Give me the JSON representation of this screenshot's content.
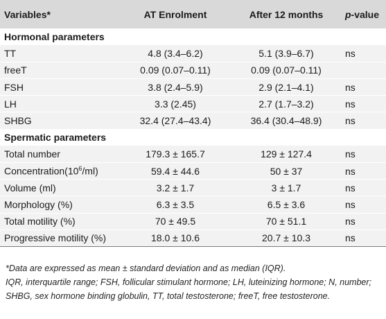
{
  "header": {
    "variables": "Variables*",
    "at_enrolment": "AT Enrolment",
    "after_12_months": "After 12 months",
    "p_value_p": "p",
    "p_value_rest": "-value"
  },
  "sections": [
    {
      "title": "Hormonal parameters",
      "rows": [
        {
          "variable": "TT",
          "at": "4.8 (3.4–6.2)",
          "after": "5.1 (3.9–6.7)",
          "p": "ns"
        },
        {
          "variable": "freeT",
          "at": "0.09 (0.07–0.11)",
          "after": "0.09 (0.07–0.11)",
          "p": ""
        },
        {
          "variable": "FSH",
          "at": "3.8 (2.4–5.9)",
          "after": "2.9 (2.1–4.1)",
          "p": "ns"
        },
        {
          "variable": "LH",
          "at": "3.3 (2.45)",
          "after": "2.7 (1.7–3.2)",
          "p": "ns"
        },
        {
          "variable": "SHBG",
          "at": "32.4 (27.4–43.4)",
          "after": "36.4 (30.4–48.9)",
          "p": "ns"
        }
      ]
    },
    {
      "title": "Spermatic parameters",
      "rows": [
        {
          "variable": "Total number",
          "at": "179.3 ± 165.7",
          "after": "129 ± 127.4",
          "p": "ns"
        },
        {
          "variable_pre": "Concentration(10",
          "variable_sup": "6",
          "variable_post": "/ml)",
          "at": "59.4 ± 44.6",
          "after": "50 ± 37",
          "p": "ns"
        },
        {
          "variable": "Volume (ml)",
          "at": "3.2 ± 1.7",
          "after": "3 ± 1.7",
          "p": "ns"
        },
        {
          "variable": "Morphology (%)",
          "at": "6.3 ± 3.5",
          "after": "6.5 ± 3.6",
          "p": "ns"
        },
        {
          "variable": "Total motility (%)",
          "at": "70 ± 49.5",
          "after": "70 ± 51.1",
          "p": "ns"
        },
        {
          "variable": "Progressive motility (%)",
          "at": "18.0 ± 10.6",
          "after": "20.7 ± 10.3",
          "p": "ns"
        }
      ]
    }
  ],
  "footnote": {
    "line1": "*Data are expressed as mean ± standard deviation and as median (IQR).",
    "line2": "IQR, interquartile range; FSH, follicular stimulant hormone; LH, luteinizing hormone; N, number; SHBG, sex hormone binding globulin, TT, total testosterone; freeT, free testosterone."
  }
}
